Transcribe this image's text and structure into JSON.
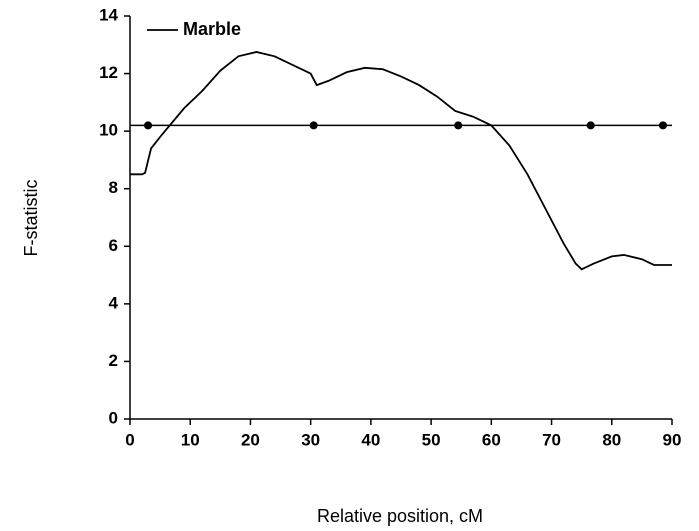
{
  "chart_data": {
    "type": "line",
    "xlabel": "Relative position, cM",
    "ylabel": "F-statistic",
    "x": [
      0,
      2,
      2.5,
      3.5,
      5,
      7,
      9,
      12,
      15,
      18,
      21,
      24,
      27,
      30,
      31,
      33,
      36,
      39,
      42,
      45,
      48,
      51,
      54,
      57,
      60,
      63,
      66,
      69,
      72,
      74,
      75,
      77,
      80,
      82,
      85,
      87,
      90
    ],
    "series": [
      {
        "name": "Marble",
        "color": "#000000",
        "values": [
          8.5,
          8.5,
          8.55,
          9.4,
          9.8,
          10.3,
          10.8,
          11.4,
          12.1,
          12.6,
          12.75,
          12.6,
          12.3,
          12.0,
          11.6,
          11.75,
          12.05,
          12.2,
          12.15,
          11.9,
          11.6,
          11.2,
          10.7,
          10.5,
          10.2,
          9.5,
          8.5,
          7.3,
          6.1,
          5.4,
          5.2,
          5.4,
          5.65,
          5.7,
          5.55,
          5.35,
          5.35
        ]
      }
    ],
    "reference_line": {
      "y": 10.2,
      "color": "#000000",
      "markers_x": [
        3,
        30.5,
        54.5,
        76.5,
        88.5
      ]
    },
    "xlim": [
      0,
      90
    ],
    "xticks": [
      0,
      10,
      20,
      30,
      40,
      50,
      60,
      70,
      80,
      90
    ],
    "ylim": [
      0,
      14
    ],
    "yticks": [
      0,
      2,
      4,
      6,
      8,
      10,
      12,
      14
    ],
    "grid": false,
    "legend": "upper left"
  }
}
